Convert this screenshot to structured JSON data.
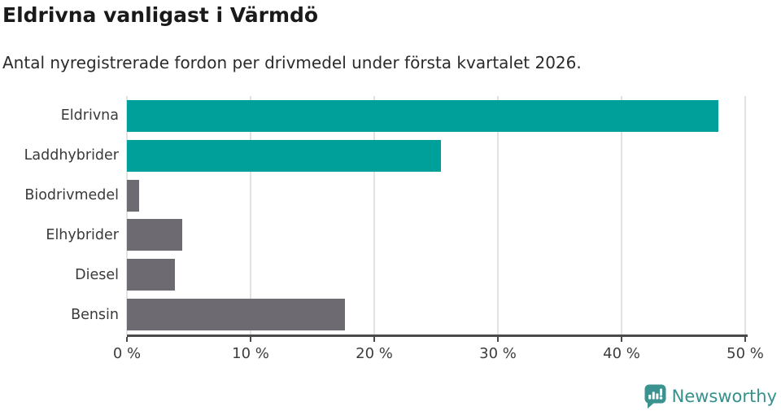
{
  "title": "Eldrivna vanligast i Värmdö",
  "subtitle": "Antal nyregistrerade fordon per drivmedel under första kvartalet 2026.",
  "chart_data": {
    "type": "bar",
    "orientation": "horizontal",
    "title": "Eldrivna vanligast i Värmdö",
    "subtitle": "Antal nyregistrerade fordon per drivmedel under första kvartalet 2026.",
    "categories": [
      "Eldrivna",
      "Laddhybrider",
      "Biodrivmedel",
      "Elhybrider",
      "Diesel",
      "Bensin"
    ],
    "values": [
      47.8,
      25.4,
      1.0,
      4.5,
      3.9,
      17.6
    ],
    "unit": "%",
    "bar_colors": [
      "#00a09a",
      "#00a09a",
      "#6d6b71",
      "#6d6b71",
      "#6d6b71",
      "#6d6b71"
    ],
    "highlight_color": "#00a09a",
    "default_color": "#6d6b71",
    "xlim": [
      0,
      50
    ],
    "x_ticks": [
      0,
      10,
      20,
      30,
      40,
      50
    ],
    "x_tick_labels": [
      "0 %",
      "10 %",
      "20 %",
      "30 %",
      "40 %",
      "50 %"
    ],
    "grid": true,
    "gridline_color": "#e2e2e2",
    "axis_color": "#4a4a4a",
    "legend": "none"
  },
  "branding": {
    "logo_text": "Newsworthy",
    "logo_color": "#35918c",
    "logo_icon": "newsworthy-chart-bubble-icon",
    "logo_icon_color": "#3a938e"
  }
}
